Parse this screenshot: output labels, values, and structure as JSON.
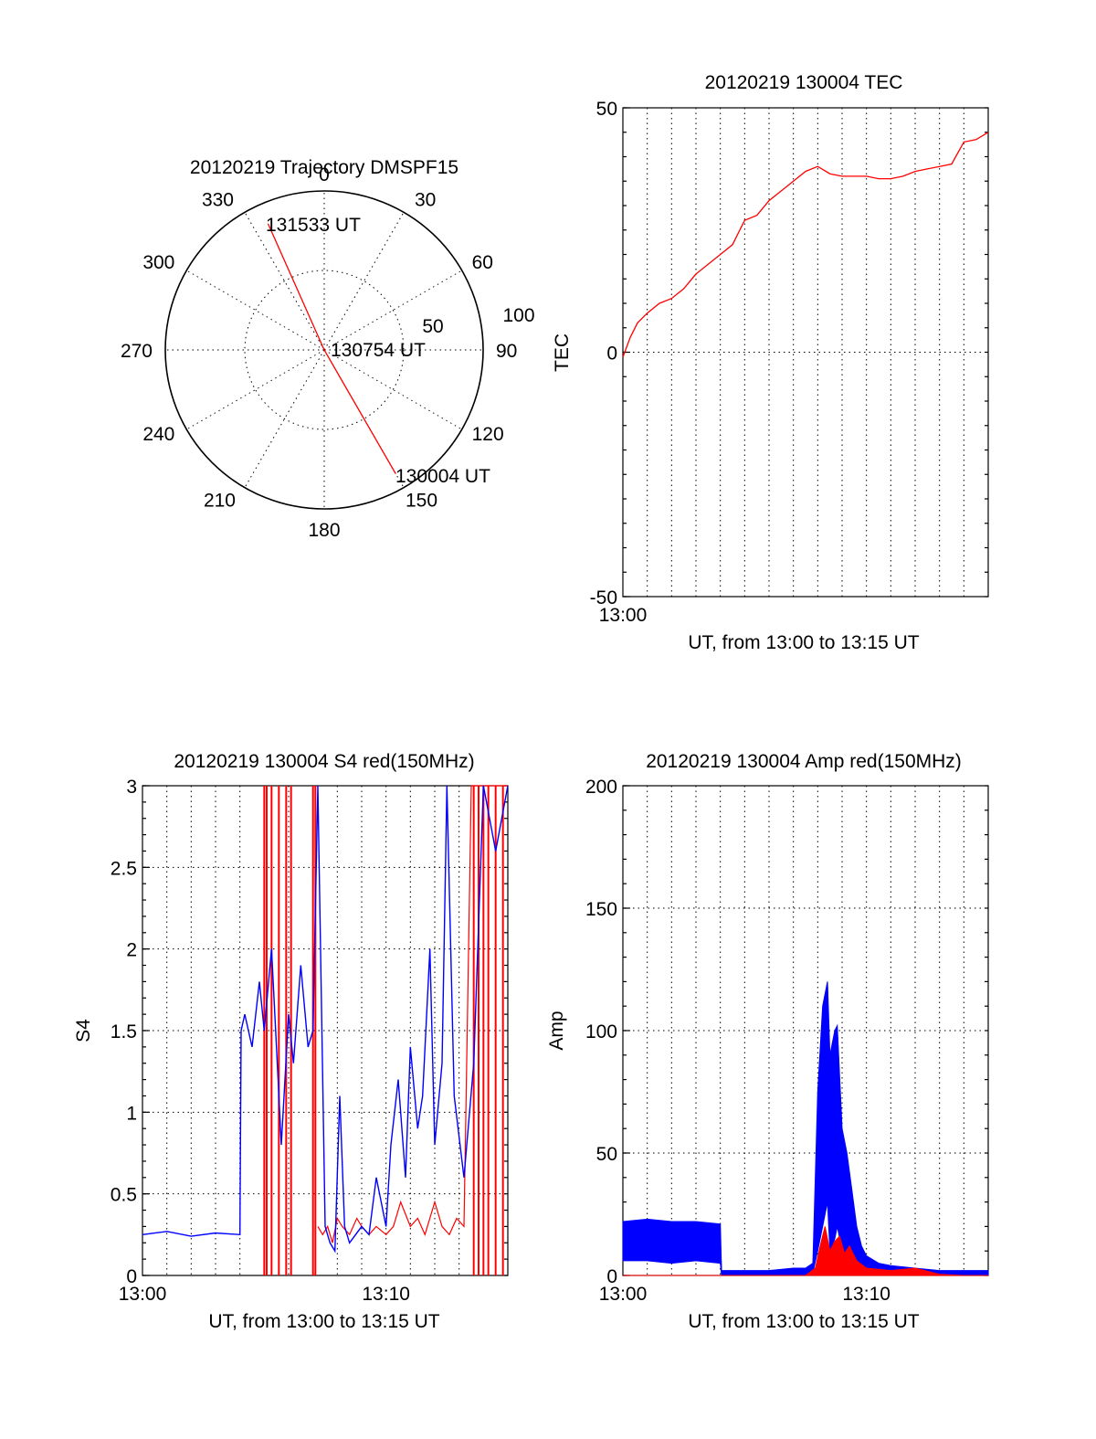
{
  "colors": {
    "red": "#ff0000",
    "blue": "#0000ff",
    "black": "#000000"
  },
  "chart_data": [
    {
      "type": "polar",
      "title": "20120219 Trajectory DMSPF15",
      "angle_labels": [
        "0",
        "30",
        "60",
        "90",
        "120",
        "150",
        "180",
        "210",
        "240",
        "270",
        "300",
        "330"
      ],
      "radius_labels": [
        "50",
        "100"
      ],
      "rlim": [
        0,
        100
      ],
      "grid": true,
      "trajectory": {
        "color": "red",
        "points": [
          {
            "time": "131533 UT",
            "azimuth": 336,
            "elevation_offset": 87
          },
          {
            "time": "130754 UT",
            "azimuth": 0,
            "elevation_offset": 0
          },
          {
            "time": "130004 UT",
            "azimuth": 150,
            "elevation_offset": 90
          }
        ]
      }
    },
    {
      "type": "line",
      "title": "20120219 130004 TEC",
      "xlabel": "UT, from 13:00 to 13:15 UT",
      "ylabel": "TEC",
      "xlim_minutes": [
        0,
        15
      ],
      "ylim": [
        -50,
        50
      ],
      "ytick_labels": [
        "50",
        "0",
        "-50"
      ],
      "xtick_labels": [
        "13:00"
      ],
      "grid": true,
      "series": [
        {
          "color": "red",
          "x_minutes": [
            0,
            0.3,
            0.6,
            1.0,
            1.5,
            2.0,
            2.5,
            3.0,
            3.5,
            4.0,
            4.5,
            5.0,
            5.5,
            6.0,
            6.5,
            7.0,
            7.5,
            8.0,
            8.5,
            9.0,
            9.5,
            10.0,
            10.5,
            11.0,
            11.5,
            12.0,
            12.5,
            13.0,
            13.5,
            14.0,
            14.5,
            15.0
          ],
          "values": [
            -1,
            3,
            6,
            8,
            10,
            11,
            13,
            16,
            18,
            20,
            22,
            27,
            28,
            31,
            33,
            35,
            37,
            38,
            36.5,
            36,
            36,
            36,
            35.5,
            35.5,
            36,
            37,
            37.5,
            38,
            38.5,
            43,
            43.5,
            45
          ]
        }
      ]
    },
    {
      "type": "line",
      "title": "20120219 130004 S4 red(150MHz)",
      "xlabel": "UT, from 13:00 to 13:15 UT",
      "ylabel": "S4",
      "xlim_minutes": [
        0,
        15
      ],
      "ylim": [
        0,
        3
      ],
      "ytick_labels": [
        "0",
        "0.5",
        "1",
        "1.5",
        "2",
        "2.5",
        "3"
      ],
      "xtick_labels": [
        "13:00",
        "13:10"
      ],
      "grid": true,
      "series": [
        {
          "color": "blue",
          "x_minutes": [
            0,
            1,
            2,
            3,
            4,
            4.05,
            4.2,
            4.5,
            4.8,
            5.0,
            5.3,
            5.5,
            5.7,
            6.0,
            6.2,
            6.5,
            6.8,
            7.0,
            7.2,
            7.5,
            7.7,
            7.9,
            8.1,
            8.3,
            8.5,
            9.0,
            9.3,
            9.6,
            10.0,
            10.2,
            10.5,
            10.8,
            11.0,
            11.3,
            11.5,
            11.8,
            12.0,
            12.3,
            12.5,
            12.8,
            13.2,
            13.6,
            14.0,
            14.5,
            15.0
          ],
          "values": [
            0.25,
            0.27,
            0.24,
            0.26,
            0.25,
            1.5,
            1.6,
            1.4,
            1.8,
            1.5,
            2.0,
            1.4,
            0.8,
            1.6,
            1.3,
            1.9,
            1.4,
            1.5,
            3.0,
            0.3,
            0.2,
            0.15,
            1.1,
            0.3,
            0.2,
            0.3,
            0.25,
            0.6,
            0.3,
            0.8,
            1.2,
            0.6,
            1.4,
            0.9,
            1.1,
            2.0,
            0.8,
            1.3,
            3.0,
            1.1,
            0.6,
            1.3,
            3.0,
            2.6,
            3.0
          ]
        },
        {
          "color": "red",
          "x_minutes": [
            7.2,
            7.4,
            7.6,
            7.8,
            8.0,
            8.2,
            8.5,
            8.8,
            9.0,
            9.3,
            9.6,
            10.0,
            10.3,
            10.6,
            11.0,
            11.3,
            11.6,
            12.0,
            12.3,
            12.6,
            12.9,
            13.2,
            13.5,
            14.0,
            14.5,
            15.0
          ],
          "values": [
            0.3,
            0.25,
            0.3,
            0.2,
            0.35,
            0.3,
            0.25,
            0.35,
            0.3,
            0.25,
            0.3,
            0.25,
            0.3,
            0.45,
            0.3,
            0.35,
            0.25,
            0.45,
            0.3,
            0.25,
            0.35,
            0.3,
            3.0,
            3.0,
            3.0,
            3.0
          ]
        }
      ],
      "red_spikes_minutes": [
        5.0,
        5.1,
        5.3,
        5.6,
        5.9,
        6.1,
        7.0,
        7.1,
        13.6,
        13.8,
        14.0,
        14.2,
        14.5,
        14.8
      ]
    },
    {
      "type": "line",
      "title": "20120219 130004 Amp red(150MHz)",
      "xlabel": "UT, from 13:00 to 13:15 UT",
      "ylabel": "Amp",
      "xlim_minutes": [
        0,
        15
      ],
      "ylim": [
        0,
        200
      ],
      "ytick_labels": [
        "0",
        "50",
        "100",
        "150",
        "200"
      ],
      "xtick_labels": [
        "13:00",
        "13:10"
      ],
      "grid": true,
      "series": [
        {
          "color": "blue",
          "x_minutes": [
            0,
            1,
            2,
            3,
            4,
            4.05,
            5,
            6,
            7,
            7.5,
            7.8,
            8.0,
            8.2,
            8.4,
            8.5,
            8.7,
            8.8,
            9.0,
            9.2,
            9.4,
            9.6,
            9.8,
            10.0,
            10.5,
            11,
            12,
            13,
            14,
            15
          ],
          "values": [
            14,
            15,
            14,
            14,
            13,
            1,
            1,
            1,
            2,
            2,
            3,
            40,
            80,
            118,
            60,
            95,
            100,
            55,
            45,
            30,
            18,
            10,
            6,
            4,
            3,
            2,
            1,
            1,
            1
          ],
          "band_upper": [
            22,
            23,
            22,
            22,
            21,
            2,
            2,
            2,
            3,
            3,
            5,
            75,
            110,
            120,
            90,
            100,
            102,
            60,
            50,
            35,
            20,
            12,
            8,
            5,
            4,
            3,
            2,
            2,
            2
          ],
          "band_lower": [
            6,
            6,
            5,
            6,
            5,
            0,
            0,
            0,
            0,
            0,
            1,
            10,
            20,
            30,
            10,
            15,
            20,
            10,
            8,
            5,
            2,
            1,
            1,
            0,
            0,
            0,
            0,
            0,
            0
          ]
        },
        {
          "color": "red",
          "x_minutes": [
            0,
            7.5,
            7.9,
            8.1,
            8.3,
            8.5,
            8.7,
            8.9,
            9.1,
            9.3,
            9.6,
            10.0,
            11.0,
            12.0,
            13.0,
            14.0,
            15.0
          ],
          "values": [
            0,
            0,
            3,
            12,
            20,
            10,
            14,
            16,
            9,
            12,
            6,
            3,
            2,
            3,
            0.5,
            0,
            0
          ]
        }
      ]
    }
  ],
  "polar_annotations": {
    "top_time": "131533 UT",
    "center_time": "130754 UT",
    "bottom_time": "130004 UT"
  }
}
